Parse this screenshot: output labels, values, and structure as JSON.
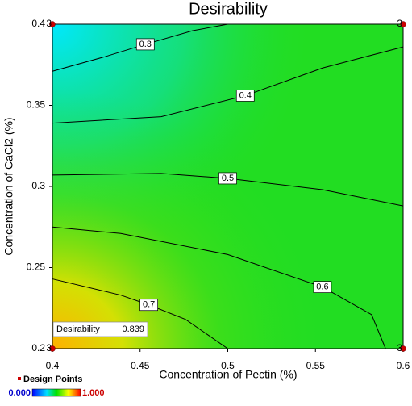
{
  "chart_data": {
    "type": "contour",
    "title": "Desirability",
    "x_label": "Concentration of Pectin (%)",
    "y_label": "Concentration of CaCl2 (%)",
    "xlim": [
      0.4,
      0.6
    ],
    "ylim": [
      0.2,
      0.4
    ],
    "xticks": [
      0.4,
      0.45,
      0.5,
      0.55,
      0.6
    ],
    "yticks": [
      0.2,
      0.25,
      0.3,
      0.35,
      0.4
    ],
    "contours": [
      {
        "level": 0.3,
        "x": [
          0.4,
          0.43,
          0.453,
          0.48,
          0.5
        ],
        "y": [
          0.371,
          0.38,
          0.3876,
          0.396,
          0.4
        ]
      },
      {
        "level": 0.4,
        "x": [
          0.4,
          0.462,
          0.51,
          0.554,
          0.6
        ],
        "y": [
          0.339,
          0.343,
          0.356,
          0.373,
          0.386
        ]
      },
      {
        "level": 0.5,
        "x": [
          0.4,
          0.462,
          0.5,
          0.554,
          0.6
        ],
        "y": [
          0.307,
          0.308,
          0.305,
          0.298,
          0.288
        ]
      },
      {
        "level": 0.6,
        "x": [
          0.4,
          0.439,
          0.5,
          0.554,
          0.582,
          0.59
        ],
        "y": [
          0.275,
          0.271,
          0.258,
          0.238,
          0.221,
          0.2
        ]
      },
      {
        "level": 0.7,
        "x": [
          0.4,
          0.439,
          0.455,
          0.476,
          0.5
        ],
        "y": [
          0.243,
          0.233,
          0.227,
          0.218,
          0.2
        ]
      }
    ],
    "design_points": {
      "name": "Design Points",
      "color": "#cc0000",
      "x": [
        0.4,
        0.6,
        0.4,
        0.6
      ],
      "y": [
        0.4,
        0.4,
        0.2,
        0.2
      ],
      "counts": [
        3,
        3,
        3,
        3
      ]
    },
    "annotation": {
      "label": "Desirability",
      "value": 0.839
    },
    "colorbar": {
      "ticks": [
        {
          "value": 0,
          "label": "0.000"
        },
        {
          "value": 1,
          "label": "1.000"
        }
      ]
    }
  }
}
